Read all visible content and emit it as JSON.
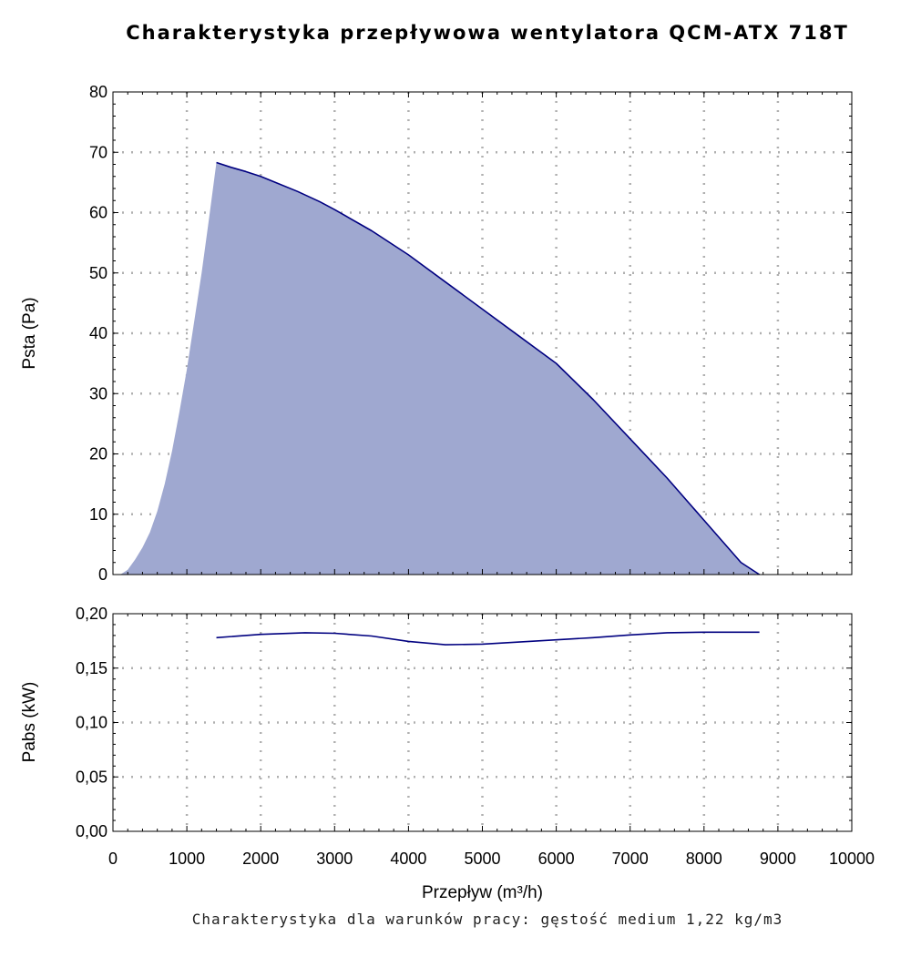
{
  "title": "Charakterystyka przepływowa wentylatora QCM-ATX 718T",
  "footer": "Charakterystyka dla warunków pracy: gęstość medium 1,22 kg/m3",
  "colors": {
    "fill": "#9fa8d0",
    "line": "#000080",
    "grid": "#b0b0b0"
  },
  "chart_data": [
    {
      "type": "area",
      "xlabel": "Przepływ (m³/h)",
      "ylabel": "Psta (Pa)",
      "xlim": [
        0,
        10000
      ],
      "ylim": [
        0,
        80
      ],
      "xticks": [
        0,
        1000,
        2000,
        3000,
        4000,
        5000,
        6000,
        7000,
        8000,
        9000,
        10000
      ],
      "yticks": [
        "0",
        "10",
        "20",
        "30",
        "40",
        "50",
        "60",
        "70",
        "80"
      ],
      "grid": true,
      "fill_boundary": {
        "x": [
          100,
          200,
          300,
          400,
          500,
          600,
          700,
          800,
          900,
          1000,
          1100,
          1200,
          1300,
          1400
        ],
        "y": [
          0,
          0.8,
          2.5,
          4.5,
          7,
          10.5,
          15,
          20.5,
          27,
          34,
          42,
          50,
          59,
          68.3
        ]
      },
      "series": [
        {
          "x": [
            1400,
            1600,
            1800,
            2000,
            2200,
            2500,
            2800,
            3000,
            3500,
            4000,
            4500,
            5000,
            5500,
            6000,
            6500,
            7000,
            7500,
            8000,
            8500,
            8750
          ],
          "y": [
            68.3,
            67.5,
            66.8,
            66,
            65,
            63.5,
            61.8,
            60.5,
            57,
            53,
            48.5,
            44,
            39.5,
            35,
            29,
            22.5,
            16,
            9,
            2,
            0
          ]
        }
      ]
    },
    {
      "type": "line",
      "xlabel": "Przepływ (m³/h)",
      "ylabel": "Pabs (kW)",
      "xlim": [
        0,
        10000
      ],
      "ylim": [
        0,
        0.2
      ],
      "xticks": [
        0,
        1000,
        2000,
        3000,
        4000,
        5000,
        6000,
        7000,
        8000,
        9000,
        10000
      ],
      "yticks": [
        "0,00",
        "0,05",
        "0,10",
        "0,15",
        "0,20"
      ],
      "grid": true,
      "series": [
        {
          "x": [
            1400,
            2000,
            2600,
            3000,
            3500,
            4000,
            4500,
            5000,
            5500,
            6000,
            6500,
            7000,
            7500,
            8000,
            8500,
            8750
          ],
          "y": [
            0.178,
            0.181,
            0.1825,
            0.182,
            0.1795,
            0.1745,
            0.1715,
            0.172,
            0.174,
            0.176,
            0.178,
            0.1805,
            0.1825,
            0.183,
            0.183,
            0.183
          ]
        }
      ]
    }
  ]
}
